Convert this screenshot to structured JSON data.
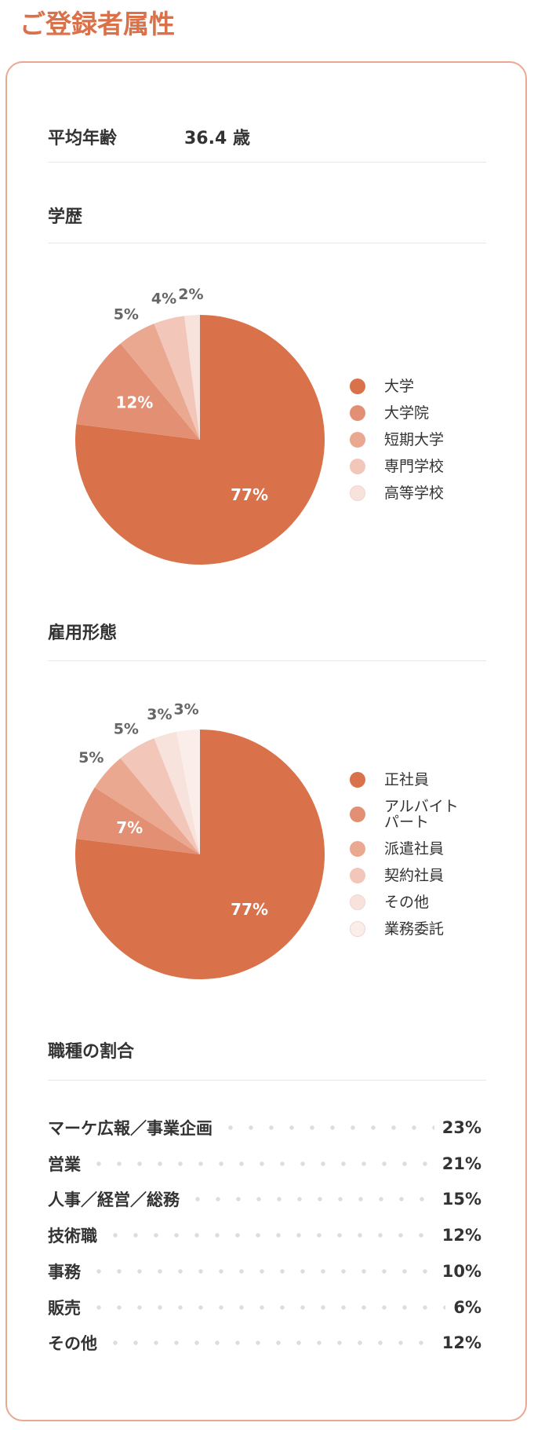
{
  "header": {
    "title": "ご登録者属性"
  },
  "average_age": {
    "label": "平均年齢",
    "value": "36.4 歳"
  },
  "chart_data": [
    {
      "type": "pie",
      "title": "学歴",
      "categories": [
        "大学",
        "大学院",
        "短期大学",
        "専門学校",
        "高等学校"
      ],
      "values": [
        77,
        12,
        5,
        4,
        2
      ],
      "value_labels": [
        "77%",
        "12%",
        "5%",
        "4%",
        "2%"
      ],
      "colors": [
        "#d9714a",
        "#e38f73",
        "#eaa891",
        "#f2c6b8",
        "#f8e2dc"
      ]
    },
    {
      "type": "pie",
      "title": "雇用形態",
      "categories": [
        "正社員",
        "アルバイト\nパート",
        "派遣社員",
        "契約社員",
        "その他",
        "業務委託"
      ],
      "values": [
        77,
        7,
        5,
        5,
        3,
        3
      ],
      "value_labels": [
        "77%",
        "7%",
        "5%",
        "5%",
        "3%",
        "3%"
      ],
      "colors": [
        "#d9714a",
        "#e38f73",
        "#eaa891",
        "#f2c6b8",
        "#f8e2dc",
        "#fbeeea"
      ]
    }
  ],
  "job_types": {
    "title": "職種の割合",
    "rows": [
      {
        "label": "マーケ広報／事業企画",
        "value": "23%"
      },
      {
        "label": "営業",
        "value": "21%"
      },
      {
        "label": "人事／経営／総務",
        "value": "15%"
      },
      {
        "label": "技術職",
        "value": "12%"
      },
      {
        "label": "事務",
        "value": "10%"
      },
      {
        "label": "販売",
        "value": "6%"
      },
      {
        "label": "その他",
        "value": "12%"
      }
    ]
  }
}
